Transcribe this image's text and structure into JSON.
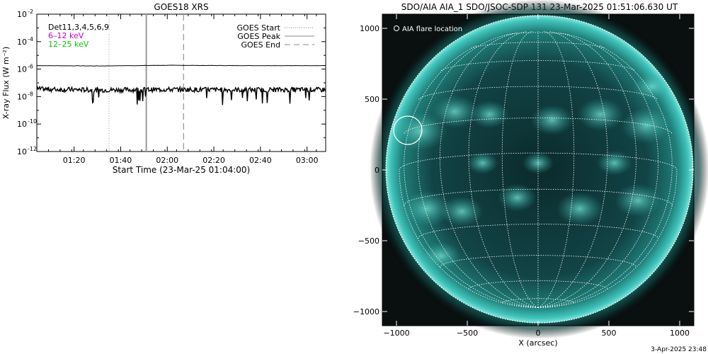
{
  "goes_panel": {
    "title": "GOES18 XRS",
    "ylabel": "X-ray Flux (W m⁻²)",
    "xlabel": "Start Time (23-Mar-25 01:04:00)",
    "y_ticks": [
      {
        "label": "10",
        "exp": "-2"
      },
      {
        "label": "10",
        "exp": "-4"
      },
      {
        "label": "10",
        "exp": "-6"
      },
      {
        "label": "10",
        "exp": "-8"
      },
      {
        "label": "10",
        "exp": "-10"
      },
      {
        "label": "10",
        "exp": "-12"
      }
    ],
    "x_ticks": [
      "01:20",
      "01:40",
      "02:00",
      "02:20",
      "02:40",
      "03:00"
    ],
    "legend_left": [
      {
        "text": "Det11,3,4,5,6,9",
        "color": "#000000"
      },
      {
        "text": "6–12 keV",
        "color": "#cc00cc"
      },
      {
        "text": "12–25 keV",
        "color": "#00cc00"
      }
    ],
    "legend_right": [
      {
        "text": "GOES Start",
        "style": "dotted"
      },
      {
        "text": "GOES Peak",
        "style": "solid"
      },
      {
        "text": "GOES End",
        "style": "dashed"
      }
    ]
  },
  "chart_data": [
    {
      "type": "line",
      "title": "GOES18 XRS",
      "xlabel": "Start Time (23-Mar-25 01:04:00)",
      "ylabel": "X-ray Flux (W m⁻²)",
      "y_scale": "log",
      "ylim": [
        1e-12,
        0.01
      ],
      "xlim": [
        "01:04",
        "03:08"
      ],
      "series": [
        {
          "name": "",
          "color": "#000000",
          "x": [
            "01:04",
            "01:30",
            "02:00",
            "02:30",
            "03:00",
            "03:08"
          ],
          "values": [
            1.8e-06,
            1.7e-06,
            1.9e-06,
            1.8e-06,
            1.8e-06,
            1.8e-06
          ]
        },
        {
          "name": "",
          "color": "#000000",
          "noisy": true,
          "x": [
            "01:04",
            "01:30",
            "02:00",
            "02:30",
            "03:00",
            "03:08"
          ],
          "values": [
            3.5e-08,
            3e-08,
            3.3e-08,
            3.1e-08,
            3.2e-08,
            3.1e-08
          ]
        }
      ],
      "markers": [
        {
          "name": "GOES Start",
          "time": "01:35",
          "style": "dotted"
        },
        {
          "name": "GOES Peak",
          "time": "01:51",
          "style": "solid"
        },
        {
          "name": "GOES End",
          "time": "02:07",
          "style": "dashed"
        }
      ]
    },
    {
      "type": "image",
      "title": "SDO/AIA AIA_1 SDO/JSOC-SDP 131 23-Mar-2025 01:51:06.630 UT",
      "xlabel": "X (arcsec)",
      "ylabel": "",
      "xlim": [
        -1100,
        1100
      ],
      "ylim": [
        -1100,
        1100
      ],
      "x_ticks": [
        -1000,
        -500,
        0,
        500,
        1000
      ],
      "y_ticks": [
        1000,
        500,
        0,
        -500,
        -1000
      ],
      "solar_radius_arcsec": 980,
      "colormap": "teal",
      "flare_location": {
        "x": -920,
        "y": 280,
        "radius": 100
      }
    }
  ],
  "aia_panel": {
    "title": "SDO/AIA AIA_1 SDO/JSOC-SDP 131 23-Mar-2025 01:51:06.630 UT",
    "legend": "AIA flare location",
    "xlabel": "X (arcsec)",
    "x_tick_labels": [
      "−1000",
      "−500",
      "0",
      "500",
      "1000"
    ],
    "y_tick_labels": [
      "1000",
      "500",
      "0",
      "−500",
      "−1000"
    ]
  },
  "footer": {
    "timestamp": "3-Apr-2025 23:48"
  }
}
